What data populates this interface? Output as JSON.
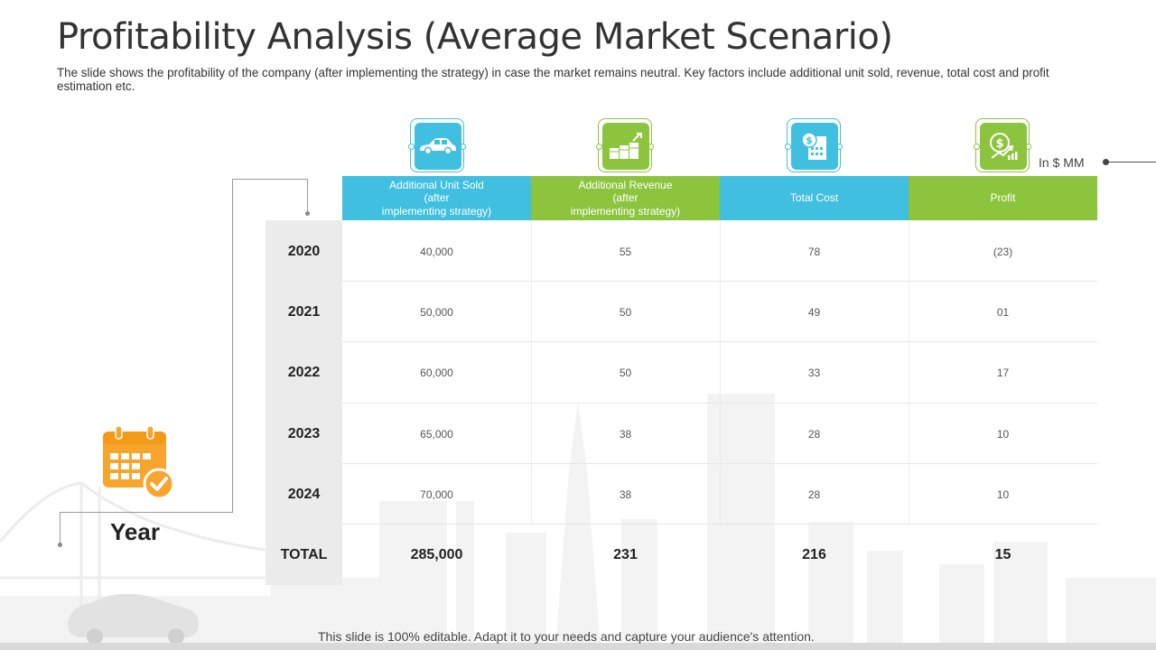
{
  "title": "Profitability Analysis (Average Market Scenario)",
  "subtitle": "The slide shows the profitability of the company (after implementing the strategy) in case the market remains neutral. Key factors include additional unit sold, revenue, total cost and profit estimation etc.",
  "unit_label": "In $ MM",
  "year_label": "Year",
  "footer": "This slide is 100% editable. Adapt it to your needs and capture your audience's attention.",
  "colors": {
    "blue": "#40bfe0",
    "green": "#8cc43e",
    "orange": "#f7a52c"
  },
  "columns": [
    {
      "icon": "car-icon",
      "color": "blue",
      "label_lines": [
        "Additional Unit Sold",
        "(after",
        "implementing strategy)"
      ]
    },
    {
      "icon": "money-growth-icon",
      "color": "green",
      "label_lines": [
        "Additional Revenue",
        "(after",
        "implementing strategy)"
      ]
    },
    {
      "icon": "invoice-dollar-icon",
      "color": "blue",
      "label_lines": [
        "Total Cost"
      ]
    },
    {
      "icon": "profit-chart-icon",
      "color": "green",
      "label_lines": [
        "Profit"
      ]
    }
  ],
  "rows": [
    {
      "year": "2020",
      "values": [
        "40,000",
        "55",
        "78",
        "(23)"
      ]
    },
    {
      "year": "2021",
      "values": [
        "50,000",
        "50",
        "49",
        "01"
      ]
    },
    {
      "year": "2022",
      "values": [
        "60,000",
        "50",
        "33",
        "17"
      ]
    },
    {
      "year": "2023",
      "values": [
        "65,000",
        "38",
        "28",
        "10"
      ]
    },
    {
      "year": "2024",
      "values": [
        "70,000",
        "38",
        "28",
        "10"
      ]
    }
  ],
  "total": {
    "label": "TOTAL",
    "values": [
      "285,000",
      "231",
      "216",
      "15"
    ]
  }
}
